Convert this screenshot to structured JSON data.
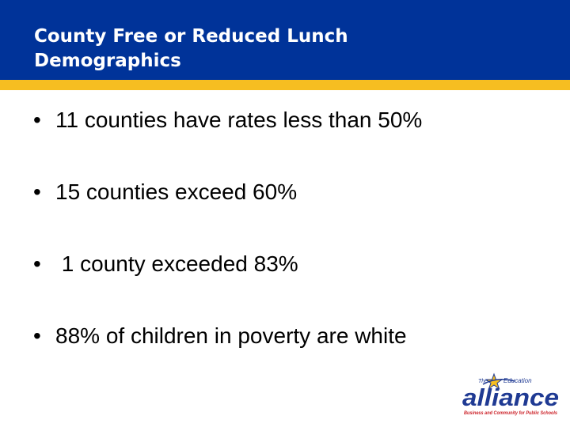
{
  "slide": {
    "title": "County Free or Reduced Lunch Demographics",
    "bullet_glyph": "•",
    "bullets": [
      "11 counties have rates less than 50%",
      "15 counties exceed 60%",
      " 1 county exceeded 83%",
      "88% of children in poverty are white"
    ]
  },
  "logo": {
    "the": "The",
    "education": "Education",
    "alliance": "alliance",
    "tagline": "Business and Community for Public Schools"
  },
  "colors": {
    "header_blue": "#003399",
    "accent_gold": "#F6BE21",
    "logo_red": "#CC2229",
    "logo_navy": "#1F3A93"
  }
}
